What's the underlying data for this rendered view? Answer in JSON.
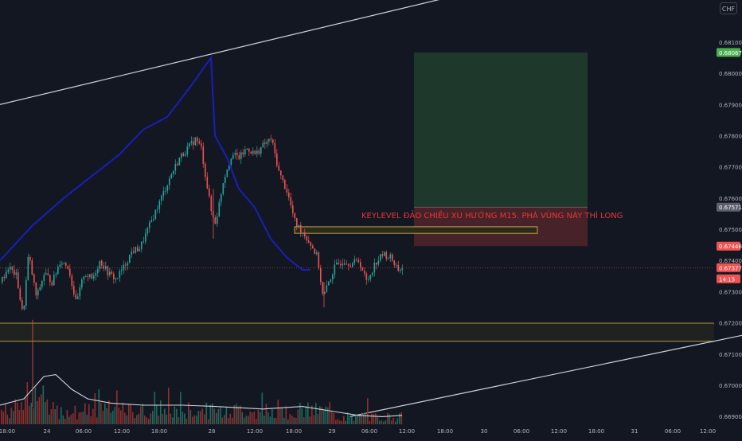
{
  "currency_badge": "CHF",
  "annotation": "KEYLEVEL ĐẢO CHIỀU XU HƯỚNG M15. PHÁ VÙNG NÀY THÌ LONG",
  "colors": {
    "background": "#131722",
    "bull": "#26a69a",
    "bear": "#ef5350",
    "ma": "#1a1fb8",
    "zone": "#e8c547",
    "annotation": "#e53935",
    "tp_zone": "#1f3a2d",
    "sl_zone": "#4a2329"
  },
  "price_labels": [
    {
      "value": "0.68067",
      "color": "#4caf50"
    },
    {
      "value": "0.67571",
      "color": "#5d606b"
    },
    {
      "value": "0.67446",
      "color": "#ef5350"
    },
    {
      "value": "0.67377",
      "color": "#ef5350"
    },
    {
      "value": "14:15",
      "color": "#ef5350"
    }
  ],
  "chart_data": {
    "type": "candlestick",
    "title": "",
    "y_ticks": [
      "0.68100",
      "0.68000",
      "0.67900",
      "0.67800",
      "0.67700",
      "0.67600",
      "0.67500",
      "0.67400",
      "0.67300",
      "0.67200",
      "0.67100",
      "0.67000",
      "0.66900"
    ],
    "x_ticks": [
      "18:00",
      "24",
      "06:00",
      "12:00",
      "18:00",
      "28",
      "12:00",
      "18:00",
      "29",
      "06:00",
      "12:00",
      "18:00",
      "30",
      "06:00",
      "12:00",
      "18:00",
      "31",
      "06:00",
      "12:00"
    ],
    "ylim": [
      0.66875,
      0.68235
    ],
    "current_price": 0.67377,
    "levels": {
      "sl": 0.67446,
      "entry": 0.67571,
      "tp": 0.68067,
      "support_zone": [
        0.67141,
        0.67199
      ],
      "key_level": [
        0.67487,
        0.67508
      ]
    },
    "price_path": [
      [
        0,
        0.6733
      ],
      [
        10,
        0.6738
      ],
      [
        20,
        0.6735
      ],
      [
        28,
        0.6722
      ],
      [
        35,
        0.6742
      ],
      [
        45,
        0.6728
      ],
      [
        55,
        0.6736
      ],
      [
        65,
        0.6733
      ],
      [
        75,
        0.674
      ],
      [
        85,
        0.6738
      ],
      [
        95,
        0.6726
      ],
      [
        105,
        0.6736
      ],
      [
        115,
        0.6734
      ],
      [
        125,
        0.674
      ],
      [
        135,
        0.6736
      ],
      [
        145,
        0.6734
      ],
      [
        155,
        0.6738
      ],
      [
        165,
        0.6743
      ],
      [
        175,
        0.6744
      ],
      [
        185,
        0.675
      ],
      [
        195,
        0.6756
      ],
      [
        205,
        0.6762
      ],
      [
        215,
        0.6768
      ],
      [
        225,
        0.6773
      ],
      [
        235,
        0.6776
      ],
      [
        245,
        0.6779
      ],
      [
        252,
        0.6776
      ],
      [
        258,
        0.6766
      ],
      [
        265,
        0.6755
      ],
      [
        270,
        0.6752
      ],
      [
        280,
        0.6766
      ],
      [
        290,
        0.6774
      ],
      [
        300,
        0.6773
      ],
      [
        310,
        0.6776
      ],
      [
        320,
        0.6774
      ],
      [
        330,
        0.6777
      ],
      [
        340,
        0.6779
      ],
      [
        350,
        0.6768
      ],
      [
        360,
        0.6762
      ],
      [
        370,
        0.6752
      ],
      [
        380,
        0.6749
      ],
      [
        390,
        0.6745
      ],
      [
        398,
        0.6741
      ],
      [
        405,
        0.6728
      ],
      [
        412,
        0.6733
      ],
      [
        420,
        0.6738
      ],
      [
        430,
        0.674
      ],
      [
        440,
        0.6739
      ],
      [
        450,
        0.674
      ],
      [
        460,
        0.6733
      ],
      [
        470,
        0.6739
      ],
      [
        480,
        0.6742
      ],
      [
        490,
        0.6741
      ],
      [
        500,
        0.6737
      ],
      [
        505,
        0.67377
      ]
    ],
    "ma_line": [
      [
        0,
        0.674
      ],
      [
        40,
        0.6751
      ],
      [
        80,
        0.676
      ],
      [
        120,
        0.6768
      ],
      [
        150,
        0.6774
      ],
      [
        180,
        0.6782
      ],
      [
        210,
        0.6786
      ],
      [
        240,
        0.6796
      ],
      [
        265,
        0.6805
      ],
      [
        270,
        0.678
      ],
      [
        285,
        0.6773
      ],
      [
        300,
        0.6763
      ],
      [
        320,
        0.6757
      ],
      [
        340,
        0.6747
      ],
      [
        360,
        0.6741
      ],
      [
        380,
        0.6737
      ],
      [
        390,
        0.6737
      ]
    ],
    "trend_channel": {
      "upper": [
        [
          0,
          0.679
        ],
        [
          820,
          0.684
        ]
      ],
      "lower": [
        [
          440,
          0.669
        ],
        [
          932,
          0.6716
        ]
      ]
    },
    "volume_ma": [
      [
        0,
        0.3
      ],
      [
        30,
        0.4
      ],
      [
        55,
        0.75
      ],
      [
        70,
        0.78
      ],
      [
        90,
        0.55
      ],
      [
        110,
        0.4
      ],
      [
        140,
        0.33
      ],
      [
        180,
        0.3
      ],
      [
        230,
        0.3
      ],
      [
        270,
        0.28
      ],
      [
        330,
        0.24
      ],
      [
        380,
        0.28
      ],
      [
        420,
        0.2
      ],
      [
        450,
        0.14
      ],
      [
        480,
        0.12
      ],
      [
        505,
        0.14
      ]
    ]
  }
}
